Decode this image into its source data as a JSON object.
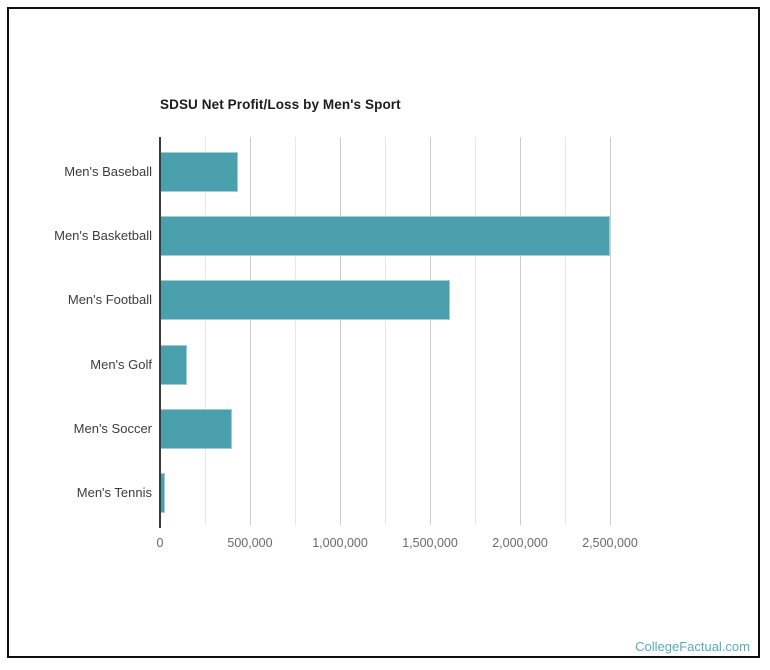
{
  "page": {
    "background": "#ffffff",
    "frame_border_color": "#0f0f0f"
  },
  "chart_data": {
    "type": "bar",
    "orientation": "horizontal",
    "title": "SDSU Net Profit/Loss by Men's Sport",
    "categories": [
      "Men's Baseball",
      "Men's Basketball",
      "Men's Football",
      "Men's Golf",
      "Men's Soccer",
      "Men's Tennis"
    ],
    "values": [
      435000,
      2500000,
      1610000,
      150000,
      400000,
      30000
    ],
    "xlabel": "",
    "ylabel": "",
    "axis": {
      "min": 0,
      "max": 2750000,
      "major_ticks": [
        0,
        500000,
        1000000,
        1500000,
        2000000,
        2500000
      ],
      "tick_labels": [
        "0",
        "500,000",
        "1,000,000",
        "1,500,000",
        "2,000,000",
        "2,500,000"
      ],
      "minor_interval": 250000
    },
    "grid": true,
    "legend": false,
    "colors": {
      "bar_fill": "#4a9fac",
      "bar_border": "#9fcdd5",
      "minor_grid": "#e7e7e7",
      "major_grid": "#cccccc",
      "axis_line": "#3b3b3b",
      "title_text": "#1c1c1c",
      "category_text": "#3d3d3d",
      "tick_text": "#6a6a6a"
    }
  },
  "footer": {
    "brand": "CollegeFactual.com",
    "color": "#55aebc"
  }
}
